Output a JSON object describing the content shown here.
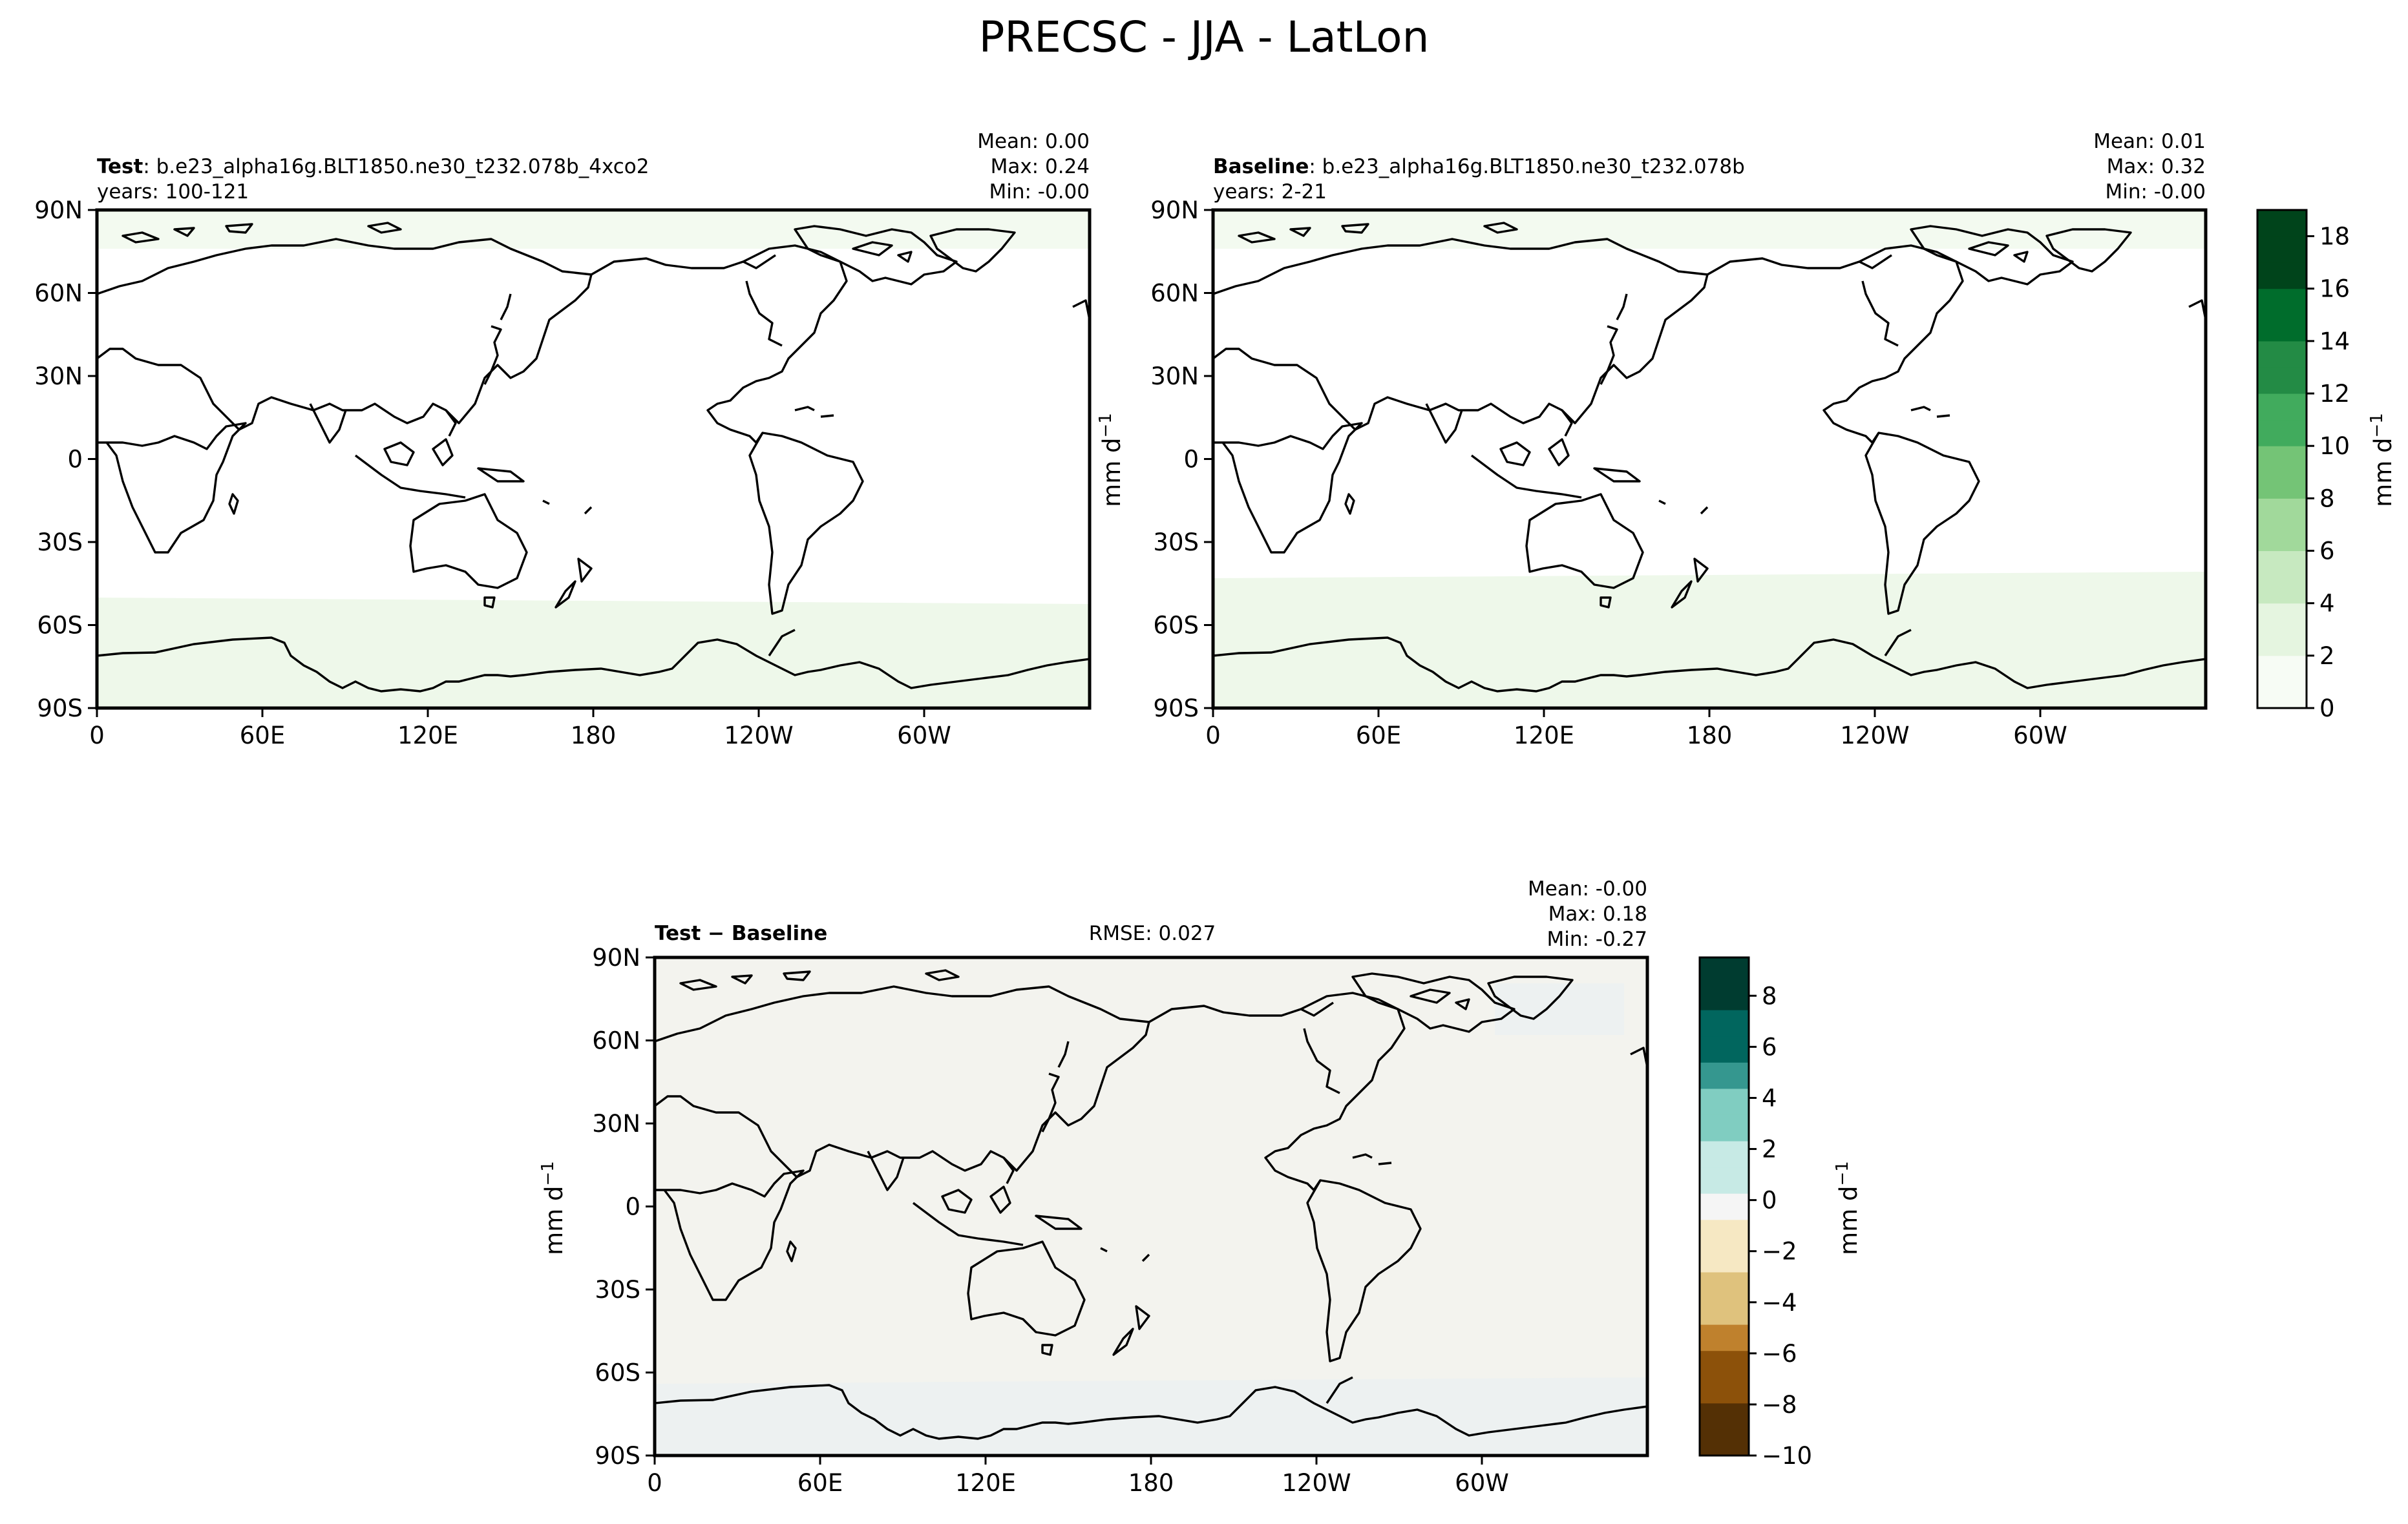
{
  "title": "PRECSC - JJA - LatLon",
  "unit_label": "mm d",
  "unit_exp": "−1",
  "lat_ticks": [
    "90N",
    "60N",
    "30N",
    "0",
    "30S",
    "60S",
    "90S"
  ],
  "lon_ticks": [
    "0",
    "60E",
    "120E",
    "180",
    "120W",
    "60W"
  ],
  "panels": [
    {
      "id": "test",
      "label_bold": "Test",
      "label_rest": ": b.e23_alpha16g.BLT1850.ne30_t232.078b_4xco2",
      "years": "years: 100-121",
      "stats": [
        "Mean:  0.00",
        "Max:  0.24",
        "Min: -0.00"
      ]
    },
    {
      "id": "baseline",
      "label_bold": "Baseline",
      "label_rest": ": b.e23_alpha16g.BLT1850.ne30_t232.078b",
      "years": "years: 2-21",
      "stats": [
        "Mean:  0.01",
        "Max:  0.32",
        "Min: -0.00"
      ]
    },
    {
      "id": "diff",
      "label_bold": "Test − Baseline",
      "rmse": "RMSE: 0.027",
      "stats": [
        "Mean: -0.00",
        "Max:  0.18",
        "Min: -0.27"
      ]
    }
  ],
  "colorbar_top": {
    "cmap": "Greens",
    "ticks": [
      "0",
      "2",
      "4",
      "6",
      "8",
      "10",
      "12",
      "14",
      "16",
      "18"
    ],
    "range": [
      0,
      19
    ],
    "colors": [
      "#f7fcf5",
      "#e5f5e0",
      "#c7e9c0",
      "#a1d99b",
      "#74c476",
      "#41ab5d",
      "#238b45",
      "#006d2c",
      "#00441b"
    ]
  },
  "colorbar_diff": {
    "cmap": "BrBG",
    "ticks": [
      "8",
      "6",
      "4",
      "2",
      "0",
      "−2",
      "−4",
      "−6",
      "−8",
      "−10"
    ],
    "range": [
      -10,
      9.5
    ],
    "colors": [
      "#543005",
      "#8c510a",
      "#bf812d",
      "#dfc27d",
      "#f6e8c3",
      "#f5f5f5",
      "#c7eae5",
      "#80cdc1",
      "#35978f",
      "#01665e",
      "#003c30"
    ]
  }
}
